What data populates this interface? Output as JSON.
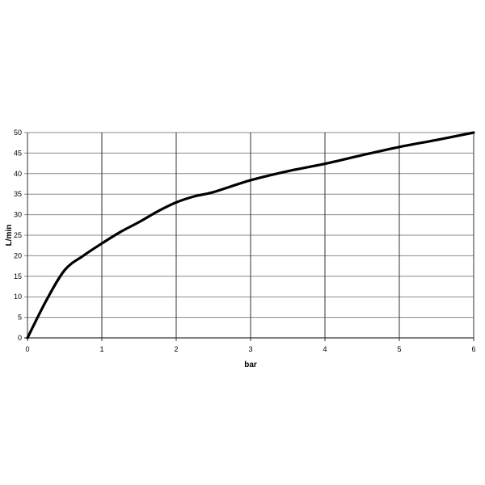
{
  "chart_data": {
    "type": "line",
    "title": "",
    "xlabel": "bar",
    "ylabel": "L/min",
    "xlim": [
      0,
      6
    ],
    "ylim": [
      0,
      50
    ],
    "xticks": [
      0,
      1,
      2,
      3,
      4,
      5,
      6
    ],
    "yticks": [
      0,
      5,
      10,
      15,
      20,
      25,
      30,
      35,
      40,
      45,
      50
    ],
    "grid": true,
    "legend": "none",
    "series": [
      {
        "color": "#000000",
        "x": [
          0,
          0.25,
          0.5,
          0.75,
          1,
          1.25,
          1.5,
          1.75,
          2,
          2.25,
          2.5,
          3,
          3.5,
          4,
          4.5,
          5,
          5.5,
          6
        ],
        "y": [
          0,
          9,
          16.5,
          20,
          23,
          25.8,
          28.2,
          30.8,
          33,
          34.5,
          35.5,
          38.4,
          40.6,
          42.4,
          44.5,
          46.5,
          48.2,
          50
        ]
      }
    ]
  }
}
